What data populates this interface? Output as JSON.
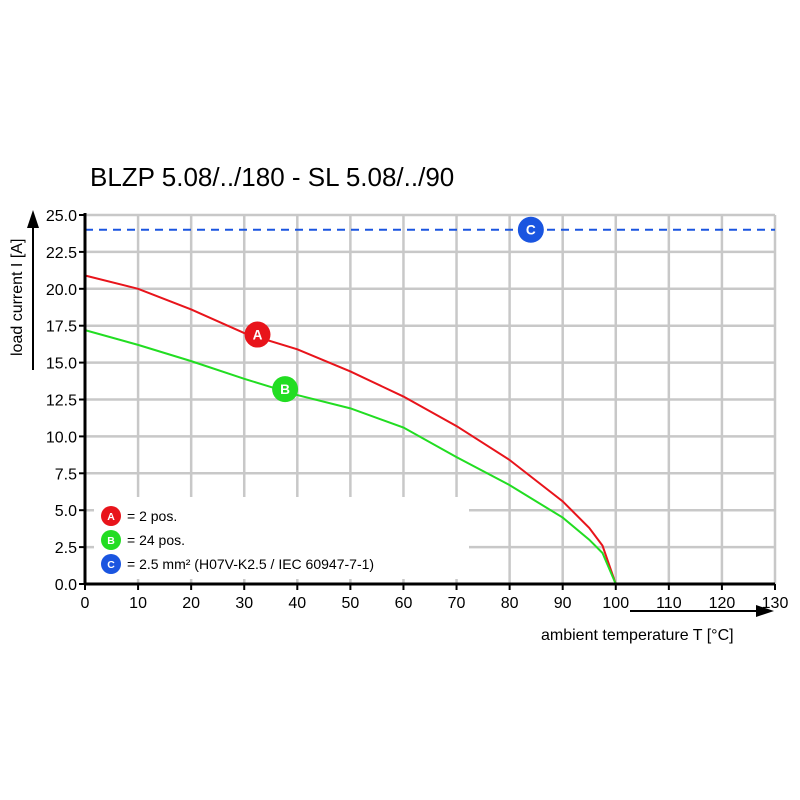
{
  "chart_data": {
    "type": "line",
    "title": "BLZP 5.08/../180 - SL 5.08/../90",
    "xlabel": "ambient temperature T [°C]",
    "ylabel": "load current I [A]",
    "xlim": [
      0,
      130
    ],
    "ylim": [
      0,
      25
    ],
    "xticks": [
      0,
      10,
      20,
      30,
      40,
      50,
      60,
      70,
      80,
      90,
      100,
      110,
      120,
      130
    ],
    "yticks": [
      "0.0",
      "2.5",
      "5.0",
      "7.5",
      "10.0",
      "12.5",
      "15.0",
      "17.5",
      "20.0",
      "22.5",
      "25.0"
    ],
    "grid": true,
    "legend_placement": "bottom-left",
    "series": [
      {
        "name": "= 2 pos.",
        "marker": "A",
        "color": "#e8141b",
        "x": [
          0,
          10,
          20,
          30,
          40,
          50,
          60,
          70,
          80,
          90,
          95,
          97.5,
          100
        ],
        "y": [
          20.9,
          20.0,
          18.6,
          17.0,
          15.9,
          14.4,
          12.7,
          10.7,
          8.4,
          5.6,
          3.8,
          2.6,
          0
        ],
        "marker_at": [
          32.5,
          16.9
        ]
      },
      {
        "name": "= 24 pos.",
        "marker": "B",
        "color": "#22dd22",
        "x": [
          0,
          10,
          20,
          30,
          40,
          50,
          60,
          70,
          80,
          90,
          95,
          97.5,
          100
        ],
        "y": [
          17.2,
          16.2,
          15.1,
          13.9,
          12.8,
          11.9,
          10.6,
          8.6,
          6.7,
          4.5,
          3.0,
          2.1,
          0
        ],
        "marker_at": [
          37.7,
          13.2
        ]
      },
      {
        "name": "= 2.5 mm² (H07V-K2.5 / IEC 60947-7-1)",
        "marker": "C",
        "color": "#1a55e0",
        "style": "dashed",
        "x": [
          0,
          130
        ],
        "y": [
          24,
          24
        ],
        "marker_at": [
          84,
          24
        ]
      }
    ]
  }
}
